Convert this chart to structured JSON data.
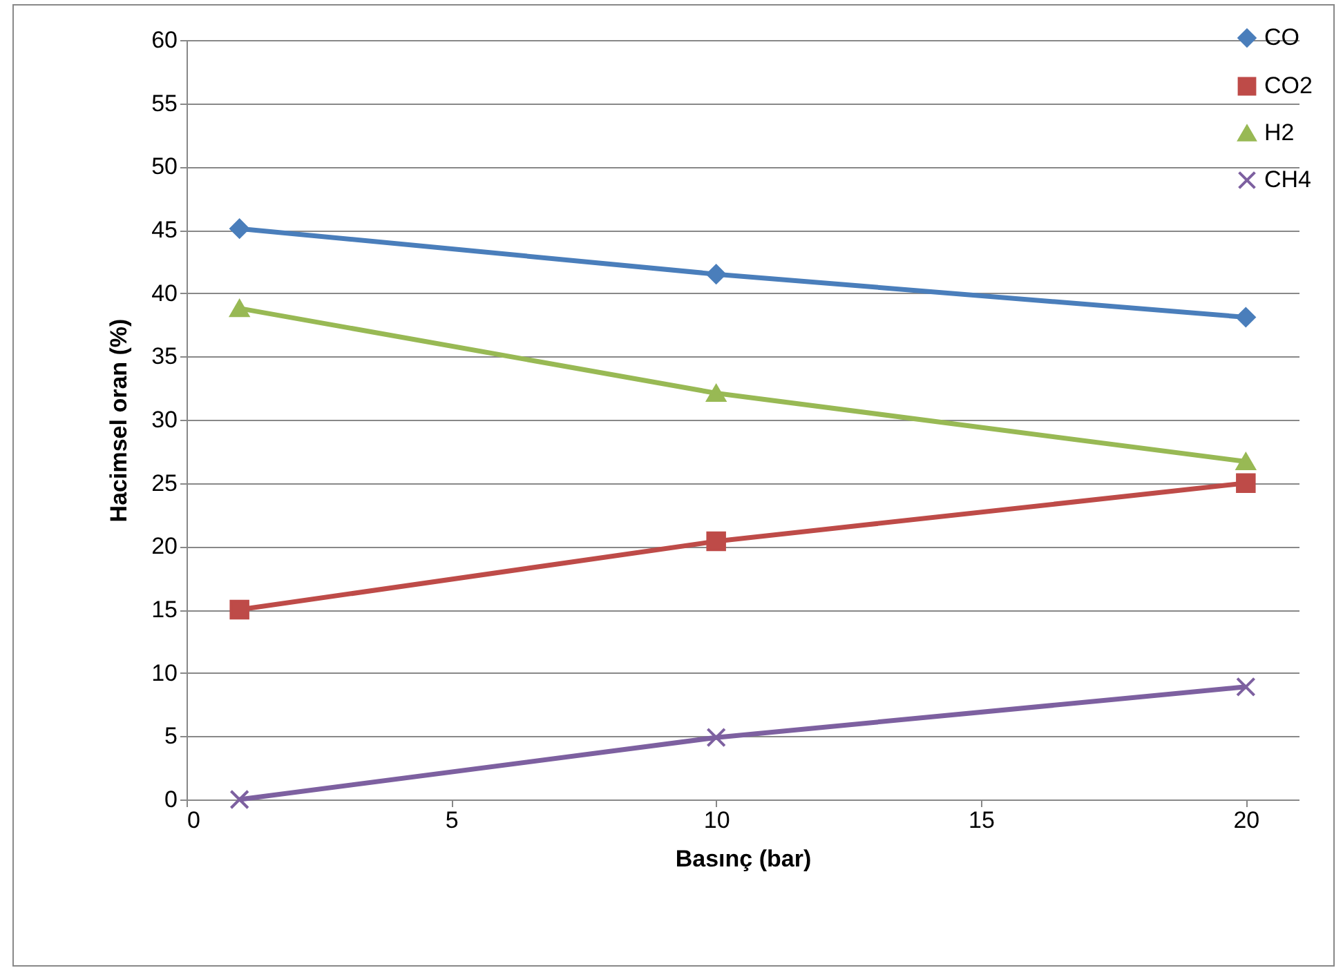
{
  "chart_data": {
    "type": "line",
    "xlabel": "Basınç (bar)",
    "ylabel": "Hacimsel oran (%)",
    "x": [
      1,
      10,
      20
    ],
    "series": [
      {
        "name": "CO",
        "color": "#4a7ebb",
        "marker": "diamond",
        "values": [
          45.1,
          41.5,
          38.1
        ]
      },
      {
        "name": "CO2",
        "color": "#be4b48",
        "marker": "square",
        "values": [
          15,
          20.4,
          25
        ]
      },
      {
        "name": "H2",
        "color": "#98b954",
        "marker": "triangle",
        "values": [
          38.8,
          32.1,
          26.7
        ]
      },
      {
        "name": "CH4",
        "color": "#7d60a0",
        "marker": "cross",
        "values": [
          0,
          4.9,
          8.9
        ]
      }
    ],
    "xlim": [
      0,
      21
    ],
    "xticks": [
      0,
      5,
      10,
      15,
      20
    ],
    "ylim": [
      0,
      60
    ],
    "yticks": [
      0,
      5,
      10,
      15,
      20,
      25,
      30,
      35,
      40,
      45,
      50,
      55,
      60
    ],
    "grid": "y",
    "legend": "top right",
    "line_style": "solid"
  }
}
